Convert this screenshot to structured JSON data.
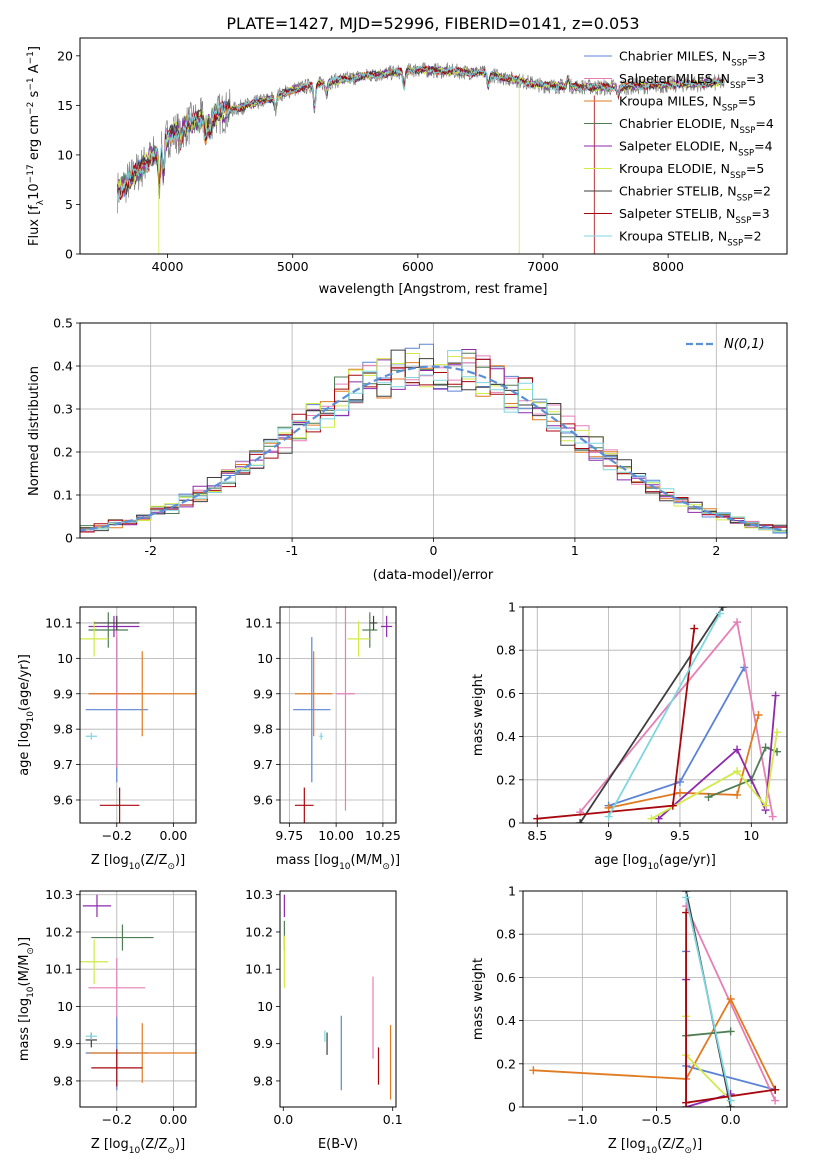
{
  "title": "PLATE=1427, MJD=52996, FIBERID=0141, z=0.053",
  "colors": {
    "Chabrier MILES": "#5b84d6",
    "Salpeter MILES": "#e57fb5",
    "Kroupa MILES": "#e07b22",
    "Chabrier ELODIE": "#4f7d55",
    "Salpeter ELODIE": "#8e2aac",
    "Kroupa ELODIE": "#d2ea4a",
    "Chabrier STELIB": "#3e3e3e",
    "Salpeter STELIB": "#a8080d",
    "Kroupa STELIB": "#7fd6e0",
    "normal": "#5b8fd6"
  },
  "chart_data": [
    {
      "id": "spectrum",
      "type": "line",
      "xlabel": "wavelength [Angstrom, rest frame]",
      "ylabel_parts": {
        "pre": "Flux [f",
        "sub": "λ",
        "mid": "10",
        "sup": "−17",
        "post": " erg cm",
        "sup2": "−2",
        "post2": " s",
        "sup3": "−1",
        "post3": " A",
        "sup4": "−1",
        "end": "]"
      },
      "xlim": [
        3300,
        8950
      ],
      "ylim": [
        0,
        21.8
      ],
      "xticks": [
        4000,
        5000,
        6000,
        7000,
        8000
      ],
      "yticks": [
        0,
        5,
        10,
        15,
        20
      ],
      "grid": false,
      "legend_position": "right",
      "data_color": "#808080",
      "continuum": [
        [
          3600,
          6.3
        ],
        [
          3700,
          7.5
        ],
        [
          3800,
          8.8
        ],
        [
          3900,
          10.1
        ],
        [
          4000,
          11.8
        ],
        [
          4200,
          13.3
        ],
        [
          4500,
          14.5
        ],
        [
          4800,
          15.6
        ],
        [
          5000,
          16.6
        ],
        [
          5300,
          17.4
        ],
        [
          5600,
          18.0
        ],
        [
          6000,
          18.6
        ],
        [
          6500,
          18.3
        ],
        [
          7000,
          17.0
        ],
        [
          7500,
          16.8
        ],
        [
          8000,
          17.1
        ],
        [
          8450,
          17.3
        ]
      ],
      "absorption_features": [
        [
          3933,
          -3.5
        ],
        [
          3968,
          -3.0
        ],
        [
          4102,
          -1.2
        ],
        [
          4305,
          -1.8
        ],
        [
          4340,
          -1.4
        ],
        [
          4861,
          -1.3
        ],
        [
          5175,
          -2.2
        ],
        [
          5270,
          -1.0
        ],
        [
          5890,
          -1.6
        ],
        [
          6563,
          -1.2
        ],
        [
          7200,
          0.8
        ],
        [
          7600,
          -0.8
        ],
        [
          8500,
          -0.8
        ]
      ],
      "legend_labels": [
        {
          "name": "Chabrier MILES",
          "label": "Chabrier MILES, N",
          "sub": "SSP",
          "value": "=3"
        },
        {
          "name": "Salpeter MILES",
          "label": "Salpeter MILES, N",
          "sub": "SSP",
          "value": "=3"
        },
        {
          "name": "Kroupa MILES",
          "label": "Kroupa MILES, N",
          "sub": "SSP",
          "value": "=5"
        },
        {
          "name": "Chabrier ELODIE",
          "label": "Chabrier ELODIE, N",
          "sub": "SSP",
          "value": "=4"
        },
        {
          "name": "Salpeter ELODIE",
          "label": "Salpeter ELODIE, N",
          "sub": "SSP",
          "value": "=4"
        },
        {
          "name": "Kroupa ELODIE",
          "label": "Kroupa ELODIE, N",
          "sub": "SSP",
          "value": "=5"
        },
        {
          "name": "Chabrier STELIB",
          "label": "Chabrier STELIB, N",
          "sub": "SSP",
          "value": "=2"
        },
        {
          "name": "Salpeter STELIB",
          "label": "Salpeter STELIB, N",
          "sub": "SSP",
          "value": "=3"
        },
        {
          "name": "Kroupa STELIB",
          "label": "Kroupa STELIB, N",
          "sub": "SSP",
          "value": "=2"
        }
      ]
    },
    {
      "id": "residuals",
      "type": "histogram",
      "xlabel": "(data-model)/error",
      "ylabel": "Normed distribution",
      "xlim": [
        -2.5,
        2.5
      ],
      "ylim": [
        0,
        0.5
      ],
      "xticks": [
        -2,
        -1,
        0,
        1,
        2
      ],
      "yticks": [
        0.0,
        0.1,
        0.2,
        0.3,
        0.4,
        0.5
      ],
      "grid": true,
      "legend_position": "upper right",
      "legend_label": "N(0,1)",
      "bin_width": 0.1
    },
    {
      "id": "age-vs-Z",
      "type": "scatter",
      "xlabel": "Z [log10(Z/Z⊙)]",
      "xlabel_parts": {
        "pre": "Z [log",
        "sub": "10",
        "mid": "(Z/Z",
        "sub2": "⊙",
        "end": ")]"
      },
      "ylabel_parts": {
        "pre": "age  [log",
        "sub": "10",
        "end": "(age/yr)]"
      },
      "xlim": [
        -0.33,
        0.08
      ],
      "ylim": [
        9.535,
        10.145
      ],
      "xticks": [
        -0.2,
        0.0
      ],
      "xtick_labels": [
        "−0.2",
        "0.00"
      ],
      "yticks": [
        9.6,
        9.7,
        9.8,
        9.9,
        10.0,
        10.1
      ],
      "grid": true,
      "points": [
        {
          "model": "Chabrier MILES",
          "x": -0.2,
          "xerr": 0.11,
          "y": 9.855,
          "yerr": 0.205
        },
        {
          "model": "Salpeter MILES",
          "x": -0.2,
          "xerr": 0.1,
          "y": 9.9,
          "yerr": 0.21
        },
        {
          "model": "Kroupa MILES",
          "x": -0.11,
          "xerr": 0.19,
          "y": 9.9,
          "yerr": 0.12
        },
        {
          "model": "Chabrier ELODIE",
          "x": -0.23,
          "xerr": 0.07,
          "y": 10.08,
          "yerr": 0.05
        },
        {
          "model": "Salpeter ELODIE",
          "x": -0.21,
          "xerr": 0.09,
          "y": 10.09,
          "yerr": 0.03
        },
        {
          "model": "Kroupa ELODIE",
          "x": -0.28,
          "xerr": 0.05,
          "y": 10.055,
          "yerr": 0.05
        },
        {
          "model": "Chabrier STELIB",
          "x": -0.2,
          "xerr": 0.08,
          "y": 10.1,
          "yerr": 0.02
        },
        {
          "model": "Salpeter STELIB",
          "x": -0.19,
          "xerr": 0.07,
          "y": 9.585,
          "yerr": 0.05
        },
        {
          "model": "Kroupa STELIB",
          "x": -0.29,
          "xerr": 0.02,
          "y": 9.78,
          "yerr": 0.01
        }
      ]
    },
    {
      "id": "age-vs-mass",
      "type": "scatter",
      "xlabel": "mass [log10(M/M⊙)]",
      "xlabel_parts": {
        "pre": "mass [log",
        "sub": "10",
        "mid": "(M/M",
        "sub2": "⊙",
        "end": ")]"
      },
      "xlim": [
        9.7,
        10.32
      ],
      "ylim": [
        9.535,
        10.145
      ],
      "xticks": [
        9.75,
        10.0,
        10.25
      ],
      "xtick_labels": [
        "9.75",
        "10.00",
        "10.25"
      ],
      "yticks": [
        9.6,
        9.7,
        9.8,
        9.9,
        10.0,
        10.1
      ],
      "grid": true,
      "points": [
        {
          "model": "Chabrier MILES",
          "x": 9.87,
          "xerr": 0.1,
          "y": 9.855,
          "yerr": 0.205
        },
        {
          "model": "Salpeter MILES",
          "x": 10.05,
          "xerr": 0.05,
          "y": 9.9,
          "yerr": 0.33
        },
        {
          "model": "Kroupa MILES",
          "x": 9.88,
          "xerr": 0.1,
          "y": 9.9,
          "yerr": 0.12
        },
        {
          "model": "Chabrier ELODIE",
          "x": 10.18,
          "xerr": 0.04,
          "y": 10.08,
          "yerr": 0.05
        },
        {
          "model": "Salpeter ELODIE",
          "x": 10.27,
          "xerr": 0.03,
          "y": 10.09,
          "yerr": 0.03
        },
        {
          "model": "Kroupa ELODIE",
          "x": 10.12,
          "xerr": 0.06,
          "y": 10.055,
          "yerr": 0.05
        },
        {
          "model": "Chabrier STELIB",
          "x": 10.2,
          "xerr": 0.02,
          "y": 10.1,
          "yerr": 0.02
        },
        {
          "model": "Salpeter STELIB",
          "x": 9.83,
          "xerr": 0.05,
          "y": 9.585,
          "yerr": 0.05
        },
        {
          "model": "Kroupa STELIB",
          "x": 9.92,
          "xerr": 0.01,
          "y": 9.78,
          "yerr": 0.01
        }
      ]
    },
    {
      "id": "weight-vs-age",
      "type": "line",
      "xlabel_parts": {
        "pre": "age  [log",
        "sub": "10",
        "end": "(age/yr)]"
      },
      "ylabel": "mass weight",
      "xlim": [
        8.4,
        10.25
      ],
      "ylim": [
        0,
        1.0
      ],
      "xticks": [
        8.5,
        9.0,
        9.5,
        10.0
      ],
      "yticks": [
        0.0,
        0.2,
        0.4,
        0.6,
        0.8,
        1.0
      ],
      "grid": true,
      "series": [
        {
          "model": "Chabrier MILES",
          "x": [
            9.0,
            9.5,
            9.95
          ],
          "y": [
            0.08,
            0.19,
            0.72
          ]
        },
        {
          "model": "Salpeter MILES",
          "x": [
            8.8,
            9.9,
            10.15
          ],
          "y": [
            0.05,
            0.93,
            0.03
          ]
        },
        {
          "model": "Kroupa MILES",
          "x": [
            9.0,
            9.5,
            9.9,
            10.05
          ],
          "y": [
            0.07,
            0.14,
            0.13,
            0.5
          ]
        },
        {
          "model": "Chabrier ELODIE",
          "x": [
            9.7,
            10.0,
            10.1,
            10.18
          ],
          "y": [
            0.12,
            0.2,
            0.35,
            0.33
          ]
        },
        {
          "model": "Salpeter ELODIE",
          "x": [
            9.35,
            9.9,
            10.1,
            10.17
          ],
          "y": [
            0.02,
            0.34,
            0.06,
            0.59
          ]
        },
        {
          "model": "Kroupa ELODIE",
          "x": [
            9.3,
            9.9,
            10.1,
            10.18
          ],
          "y": [
            0.02,
            0.24,
            0.08,
            0.42
          ]
        },
        {
          "model": "Chabrier STELIB",
          "x": [
            8.8,
            9.8
          ],
          "y": [
            0.0,
            1.0
          ]
        },
        {
          "model": "Salpeter STELIB",
          "x": [
            8.5,
            9.45,
            9.6
          ],
          "y": [
            0.02,
            0.08,
            0.9
          ]
        },
        {
          "model": "Kroupa STELIB",
          "x": [
            9.0,
            9.78
          ],
          "y": [
            0.03,
            0.97
          ]
        }
      ]
    },
    {
      "id": "mass-vs-Z",
      "type": "scatter",
      "xlabel_parts": {
        "pre": "Z [log",
        "sub": "10",
        "mid": "(Z/Z",
        "sub2": "⊙",
        "end": ")]"
      },
      "ylabel_parts": {
        "pre": "mass [log",
        "sub": "10",
        "mid": "(M/M",
        "sub2": "⊙",
        "end": ")]"
      },
      "xlim": [
        -0.33,
        0.08
      ],
      "ylim": [
        9.73,
        10.31
      ],
      "xticks": [
        -0.2,
        0.0
      ],
      "xtick_labels": [
        "−0.2",
        "0.00"
      ],
      "yticks": [
        9.8,
        9.9,
        10.0,
        10.1,
        10.2,
        10.3
      ],
      "grid": true,
      "points": [
        {
          "model": "Chabrier MILES",
          "x": -0.2,
          "xerr": 0.11,
          "y": 9.875,
          "yerr": 0.1
        },
        {
          "model": "Salpeter MILES",
          "x": -0.2,
          "xerr": 0.1,
          "y": 10.05,
          "yerr": 0.08
        },
        {
          "model": "Kroupa MILES",
          "x": -0.11,
          "xerr": 0.19,
          "y": 9.875,
          "yerr": 0.08
        },
        {
          "model": "Chabrier ELODIE",
          "x": -0.18,
          "xerr": 0.11,
          "y": 10.185,
          "yerr": 0.035
        },
        {
          "model": "Salpeter ELODIE",
          "x": -0.27,
          "xerr": 0.05,
          "y": 10.27,
          "yerr": 0.03
        },
        {
          "model": "Kroupa ELODIE",
          "x": -0.28,
          "xerr": 0.05,
          "y": 10.12,
          "yerr": 0.06
        },
        {
          "model": "Chabrier STELIB",
          "x": -0.29,
          "xerr": 0.02,
          "y": 9.91,
          "yerr": 0.02
        },
        {
          "model": "Salpeter STELIB",
          "x": -0.2,
          "xerr": 0.09,
          "y": 9.835,
          "yerr": 0.05
        },
        {
          "model": "Kroupa STELIB",
          "x": -0.29,
          "xerr": 0.02,
          "y": 9.92,
          "yerr": 0.01
        }
      ]
    },
    {
      "id": "mass-vs-EBV",
      "type": "scatter",
      "xlabel": "E(B-V)",
      "xlim": [
        -0.003,
        0.103
      ],
      "ylim": [
        9.73,
        10.31
      ],
      "xticks": [
        0.0,
        0.1
      ],
      "xtick_labels": [
        "0.0",
        "0.1"
      ],
      "yticks": [
        9.8,
        9.9,
        10.0,
        10.1,
        10.2,
        10.3
      ],
      "grid": false,
      "points": [
        {
          "model": "Chabrier MILES",
          "x": 0.053,
          "xerr": 0,
          "y": 9.875,
          "yerr": 0.1
        },
        {
          "model": "Salpeter MILES",
          "x": 0.082,
          "xerr": 0,
          "y": 9.97,
          "yerr": 0.11
        },
        {
          "model": "Kroupa MILES",
          "x": 0.098,
          "xerr": 0,
          "y": 9.85,
          "yerr": 0.1
        },
        {
          "model": "Chabrier ELODIE",
          "x": 0.001,
          "xerr": 0,
          "y": 10.19,
          "yerr": 0.04
        },
        {
          "model": "Salpeter ELODIE",
          "x": 0.001,
          "xerr": 0,
          "y": 10.27,
          "yerr": 0.03
        },
        {
          "model": "Kroupa ELODIE",
          "x": 0.001,
          "xerr": 0,
          "y": 10.12,
          "yerr": 0.07
        },
        {
          "model": "Chabrier STELIB",
          "x": 0.04,
          "xerr": 0,
          "y": 9.9,
          "yerr": 0.03
        },
        {
          "model": "Salpeter STELIB",
          "x": 0.087,
          "xerr": 0,
          "y": 9.84,
          "yerr": 0.05
        },
        {
          "model": "Kroupa STELIB",
          "x": 0.038,
          "xerr": 0,
          "y": 9.92,
          "yerr": 0.015
        }
      ]
    },
    {
      "id": "weight-vs-Z",
      "type": "line",
      "xlabel_parts": {
        "pre": "Z [log",
        "sub": "10",
        "mid": "(Z/Z",
        "sub2": "⊙",
        "end": ")]"
      },
      "ylabel": "mass weight",
      "xlim": [
        -1.4,
        0.38
      ],
      "ylim": [
        0,
        1.0
      ],
      "xticks": [
        -1.0,
        -0.5,
        0.0
      ],
      "xtick_labels": [
        "−1.0",
        "−0.5",
        "0.0"
      ],
      "yticks": [
        0.0,
        0.2,
        0.4,
        0.6,
        0.8,
        1.0
      ],
      "grid": true,
      "series": [
        {
          "model": "Chabrier MILES",
          "x": [
            -0.3,
            -0.3,
            0.3
          ],
          "y": [
            0.72,
            0.19,
            0.08
          ]
        },
        {
          "model": "Salpeter MILES",
          "x": [
            -0.3,
            0.3
          ],
          "y": [
            0.93,
            0.03
          ]
        },
        {
          "model": "Kroupa MILES",
          "x": [
            -1.33,
            -0.3,
            0.0,
            0.3
          ],
          "y": [
            0.17,
            0.13,
            0.5,
            0.08
          ]
        },
        {
          "model": "Chabrier ELODIE",
          "x": [
            -0.3,
            0.0
          ],
          "y": [
            0.33,
            0.35
          ]
        },
        {
          "model": "Salpeter ELODIE",
          "x": [
            -0.3,
            -0.3,
            0.0
          ],
          "y": [
            0.59,
            0.0,
            0.06
          ]
        },
        {
          "model": "Kroupa ELODIE",
          "x": [
            -0.3,
            -0.3,
            0.0
          ],
          "y": [
            0.42,
            0.24,
            0.03
          ]
        },
        {
          "model": "Chabrier STELIB",
          "x": [
            -0.3,
            0.0
          ],
          "y": [
            1.0,
            0.0
          ]
        },
        {
          "model": "Salpeter STELIB",
          "x": [
            -0.3,
            -0.3,
            0.3
          ],
          "y": [
            0.9,
            0.02,
            0.08
          ]
        },
        {
          "model": "Kroupa STELIB",
          "x": [
            -0.3,
            0.0
          ],
          "y": [
            0.97,
            0.03
          ]
        }
      ]
    }
  ]
}
